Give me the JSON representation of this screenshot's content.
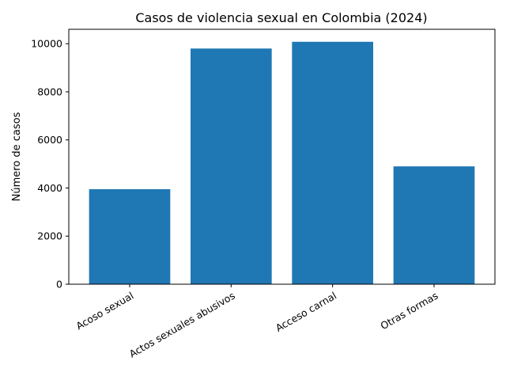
{
  "chart_data": {
    "type": "bar",
    "title": "Casos de violencia sexual en Colombia (2024)",
    "xlabel": "",
    "ylabel": "Número de casos",
    "categories": [
      "Acoso sexual",
      "Actos sexuales abusivos",
      "Acceso carnal",
      "Otras formas"
    ],
    "values": [
      3950,
      9800,
      10080,
      4900
    ],
    "ylim": [
      0,
      10600
    ],
    "yticks": [
      0,
      2000,
      4000,
      6000,
      8000,
      10000
    ],
    "bar_color": "#1f77b4",
    "grid": false,
    "legend": "none"
  }
}
